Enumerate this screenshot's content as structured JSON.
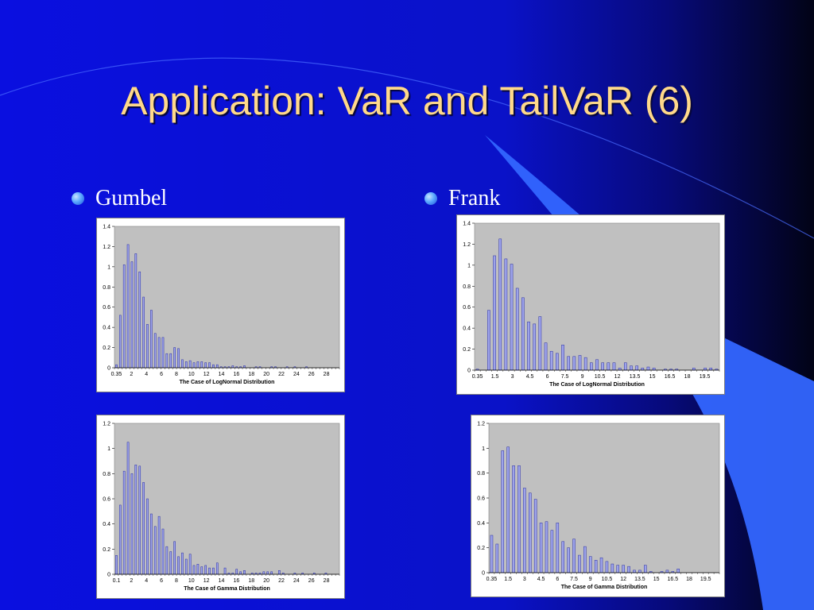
{
  "slide": {
    "title": "Application: VaR and TailVaR (6)",
    "bullets": [
      {
        "label": "Gumbel"
      },
      {
        "label": "Frank"
      }
    ]
  },
  "colors": {
    "background": "#0a12d8",
    "title": "#ffd98a",
    "bar_fill": "#9da3ea",
    "bar_stroke": "#2b2fa0",
    "plot_area": "#c0c0c0"
  },
  "chart_data": [
    {
      "type": "bar",
      "panel": "Gumbel",
      "xlabel": "The Case of LogNormal Distribution",
      "ylim": [
        0,
        1.4
      ],
      "yticks": [
        "0",
        "0.2",
        "0.4",
        "0.6",
        "0.8",
        "1",
        "1.2",
        "1.4"
      ],
      "xticks": [
        "0.35",
        "2",
        "4",
        "6",
        "8",
        "10",
        "12",
        "14",
        "16",
        "18",
        "20",
        "22",
        "24",
        "26",
        "28"
      ],
      "values": [
        0.03,
        0.52,
        1.02,
        1.22,
        1.05,
        1.13,
        0.95,
        0.7,
        0.43,
        0.57,
        0.34,
        0.3,
        0.3,
        0.14,
        0.14,
        0.2,
        0.19,
        0.08,
        0.06,
        0.07,
        0.05,
        0.06,
        0.06,
        0.05,
        0.05,
        0.03,
        0.03,
        0.01,
        0.01,
        0.01,
        0.02,
        0.01,
        0.01,
        0.02,
        0.0,
        0.0,
        0.01,
        0.01,
        0.0,
        0.0,
        0.01,
        0.01,
        0.0,
        0.0,
        0.01,
        0.0,
        0.01,
        0.0,
        0.0,
        0.01,
        0.0,
        0.0,
        0.0,
        0.0,
        0.0,
        0.0,
        0.0,
        0.0
      ]
    },
    {
      "type": "bar",
      "panel": "Frank",
      "xlabel": "The Case of LogNormal Distribution",
      "ylim": [
        0,
        1.4
      ],
      "yticks": [
        "0",
        "0.2",
        "0.4",
        "0.6",
        "0.8",
        "1",
        "1.2",
        "1.4"
      ],
      "xticks": [
        "0.35",
        "1.5",
        "3",
        "4.5",
        "6",
        "7.5",
        "9",
        "10.5",
        "12",
        "13.5",
        "15",
        "16.5",
        "18",
        "19.5"
      ],
      "values": [
        0.01,
        0.0,
        0.57,
        1.09,
        1.25,
        1.06,
        1.01,
        0.78,
        0.69,
        0.46,
        0.44,
        0.51,
        0.26,
        0.18,
        0.16,
        0.24,
        0.13,
        0.13,
        0.14,
        0.12,
        0.07,
        0.1,
        0.07,
        0.07,
        0.07,
        0.02,
        0.07,
        0.04,
        0.04,
        0.02,
        0.03,
        0.02,
        0.0,
        0.01,
        0.01,
        0.01,
        0.0,
        0.0,
        0.02,
        0.0,
        0.02,
        0.02,
        0.01
      ]
    },
    {
      "type": "bar",
      "panel": "Gumbel",
      "xlabel": "The Case of Gamma Distribution",
      "ylim": [
        0,
        1.2
      ],
      "yticks": [
        "0",
        "0.2",
        "0.4",
        "0.6",
        "0.8",
        "1",
        "1.2"
      ],
      "xticks": [
        "0.1",
        "2",
        "4",
        "6",
        "8",
        "10",
        "12",
        "14",
        "16",
        "18",
        "20",
        "22",
        "24",
        "26",
        "28"
      ],
      "values": [
        0.15,
        0.55,
        0.82,
        1.05,
        0.8,
        0.87,
        0.86,
        0.73,
        0.6,
        0.48,
        0.38,
        0.46,
        0.36,
        0.22,
        0.18,
        0.26,
        0.14,
        0.17,
        0.12,
        0.16,
        0.07,
        0.08,
        0.06,
        0.07,
        0.05,
        0.05,
        0.09,
        0.0,
        0.05,
        0.01,
        0.01,
        0.04,
        0.02,
        0.03,
        0.0,
        0.01,
        0.01,
        0.01,
        0.02,
        0.02,
        0.02,
        0.0,
        0.03,
        0.01,
        0.0,
        0.0,
        0.01,
        0.0,
        0.01,
        0.0,
        0.0,
        0.01,
        0.0,
        0.0,
        0.01,
        0.0,
        0.0,
        0.0
      ]
    },
    {
      "type": "bar",
      "panel": "Frank",
      "xlabel": "The Case of Gamma Distribution",
      "ylim": [
        0,
        1.2
      ],
      "yticks": [
        "0",
        "0.2",
        "0.4",
        "0.6",
        "0.8",
        "1",
        "1.2"
      ],
      "xticks": [
        "0.35",
        "1.5",
        "3",
        "4.5",
        "6",
        "7.5",
        "9",
        "10.5",
        "12",
        "13.5",
        "15",
        "16.5",
        "18",
        "19.5"
      ],
      "values": [
        0.3,
        0.23,
        0.98,
        1.01,
        0.86,
        0.86,
        0.68,
        0.64,
        0.59,
        0.4,
        0.41,
        0.34,
        0.4,
        0.25,
        0.2,
        0.27,
        0.14,
        0.21,
        0.13,
        0.1,
        0.12,
        0.09,
        0.07,
        0.06,
        0.06,
        0.05,
        0.02,
        0.02,
        0.06,
        0.01,
        0.0,
        0.01,
        0.02,
        0.01,
        0.03,
        0.0,
        0.0,
        0.0,
        0.0,
        0.0,
        0.0,
        0.0
      ]
    }
  ]
}
